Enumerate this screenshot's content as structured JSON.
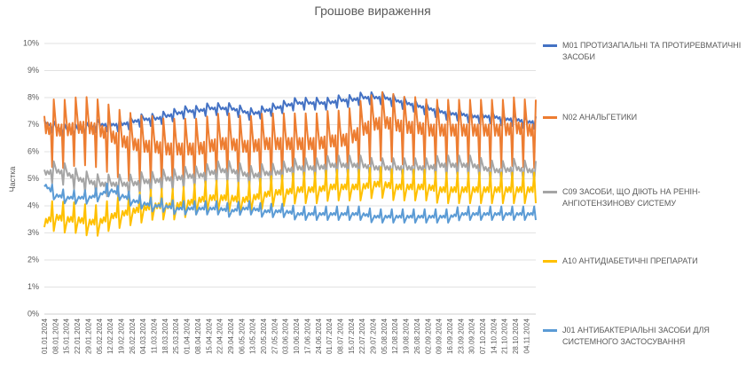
{
  "chart_data": {
    "type": "line",
    "title": "Грошове вираження",
    "ylabel": "Частка",
    "ylim": [
      0,
      10
    ],
    "y_ticks": [
      "0%",
      "1%",
      "2%",
      "3%",
      "4%",
      "5%",
      "6%",
      "7%",
      "8%",
      "9%",
      "10%"
    ],
    "x_range": [
      "2024-01-01",
      "2024-11-10"
    ],
    "x_tick_labels": [
      "01.01.2024",
      "08.01.2024",
      "15.01.2024",
      "22.01.2024",
      "29.01.2024",
      "05.02.2024",
      "12.02.2024",
      "19.02.2024",
      "26.02.2024",
      "04.03.2024",
      "11.03.2024",
      "18.03.2024",
      "25.03.2024",
      "01.04.2024",
      "08.04.2024",
      "15.04.2024",
      "22.04.2024",
      "29.04.2024",
      "06.05.2024",
      "13.05.2024",
      "20.05.2024",
      "27.05.2024",
      "03.06.2024",
      "10.06.2024",
      "17.06.2024",
      "24.06.2024",
      "01.07.2024",
      "08.07.2024",
      "15.07.2024",
      "22.07.2024",
      "29.07.2024",
      "05.08.2024",
      "12.08.2024",
      "19.08.2024",
      "26.08.2024",
      "02.09.2024",
      "09.09.2024",
      "16.09.2024",
      "23.09.2024",
      "30.09.2024",
      "07.10.2024",
      "14.10.2024",
      "21.10.2024",
      "28.10.2024",
      "04.11.2024"
    ],
    "grid": true,
    "legend_position": "right",
    "series": [
      {
        "name": "M01 ПРОТИЗАПАЛЬНІ ТА ПРОТИРЕВМАТИЧНІ ЗАСОБИ",
        "color": "#4472c4",
        "base": [
          7.1,
          6.9,
          6.8,
          6.8,
          6.9,
          7.0,
          7.0,
          7.0,
          7.1,
          7.2,
          7.2,
          7.3,
          7.4,
          7.5,
          7.5,
          7.6,
          7.6,
          7.6,
          7.5,
          7.4,
          7.5,
          7.6,
          7.7,
          7.8,
          7.8,
          7.8,
          7.8,
          7.9,
          7.9,
          8.0,
          8.0,
          8.0,
          7.9,
          7.8,
          7.7,
          7.6,
          7.5,
          7.4,
          7.4,
          7.3,
          7.3,
          7.3,
          7.2,
          7.2,
          7.1
        ],
        "amp": 0.25
      },
      {
        "name": "N02 АНАЛЬГЕТИКИ",
        "color": "#ed7d31",
        "base": [
          6.9,
          6.8,
          6.8,
          6.9,
          6.9,
          6.8,
          6.6,
          6.4,
          6.3,
          6.2,
          6.2,
          6.1,
          6.1,
          6.1,
          6.1,
          6.2,
          6.3,
          6.3,
          6.2,
          6.2,
          6.3,
          6.3,
          6.3,
          6.3,
          6.3,
          6.3,
          6.4,
          6.4,
          6.5,
          6.8,
          7.0,
          7.1,
          7.0,
          6.9,
          6.9,
          6.8,
          6.8,
          6.8,
          6.8,
          6.8,
          6.8,
          6.8,
          6.8,
          6.9,
          6.8
        ],
        "amp": 1.4
      },
      {
        "name": "C09 ЗАСОБИ, ЩО ДІЮТЬ НА РЕНІН-АНГІОТЕНЗИНОВУ СИСТЕМУ",
        "color": "#a5a5a5",
        "base": [
          5.2,
          5.3,
          5.2,
          5.0,
          4.9,
          4.8,
          4.8,
          4.8,
          4.8,
          4.9,
          4.9,
          5.0,
          5.0,
          5.1,
          5.1,
          5.2,
          5.3,
          5.3,
          5.2,
          5.1,
          5.2,
          5.2,
          5.3,
          5.4,
          5.4,
          5.4,
          5.5,
          5.5,
          5.5,
          5.5,
          5.4,
          5.4,
          5.4,
          5.4,
          5.4,
          5.4,
          5.5,
          5.5,
          5.5,
          5.5,
          5.4,
          5.3,
          5.3,
          5.4,
          5.3
        ],
        "amp": 0.45
      },
      {
        "name": "A10 АНТИДІАБЕТИЧНІ ПРЕПАРАТИ",
        "color": "#ffc000",
        "base": [
          3.4,
          3.6,
          3.5,
          3.5,
          3.4,
          3.4,
          3.6,
          3.7,
          3.8,
          3.9,
          4.0,
          4.0,
          4.0,
          4.1,
          4.2,
          4.3,
          4.3,
          4.3,
          4.2,
          4.3,
          4.4,
          4.5,
          4.5,
          4.6,
          4.6,
          4.6,
          4.7,
          4.7,
          4.7,
          4.7,
          4.8,
          4.8,
          4.7,
          4.7,
          4.7,
          4.7,
          4.6,
          4.6,
          4.6,
          4.6,
          4.6,
          4.6,
          4.6,
          4.6,
          4.6
        ],
        "amp": 0.7
      },
      {
        "name": "J01 АНТИБАКТЕРІАЛЬНІ ЗАСОБИ ДЛЯ СИСТЕМНОГО ЗАСТОСУВАННЯ",
        "color": "#5b9bd5",
        "base": [
          4.8,
          4.4,
          4.3,
          4.3,
          4.3,
          4.4,
          4.6,
          4.4,
          4.2,
          4.1,
          4.0,
          4.0,
          3.9,
          3.9,
          3.9,
          3.9,
          3.9,
          3.8,
          3.9,
          3.9,
          3.8,
          3.8,
          3.8,
          3.7,
          3.7,
          3.7,
          3.7,
          3.7,
          3.7,
          3.7,
          3.6,
          3.6,
          3.6,
          3.6,
          3.6,
          3.6,
          3.6,
          3.6,
          3.7,
          3.7,
          3.7,
          3.7,
          3.7,
          3.7,
          3.7
        ],
        "amp": 0.35
      }
    ]
  }
}
